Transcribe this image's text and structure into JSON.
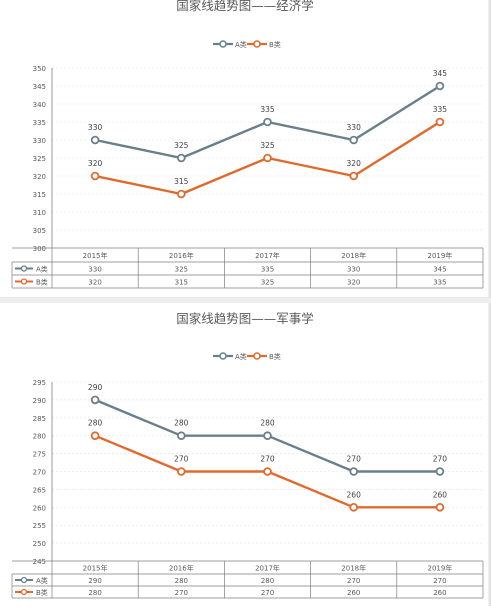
{
  "colors": {
    "series_a": "#6a7f8b",
    "series_b": "#e06a2e",
    "grid": "#e2e2e2",
    "axis": "#7f7f7f",
    "text": "#595959"
  },
  "chart_data": [
    {
      "type": "line",
      "title": "国家线趋势图——经济学",
      "categories": [
        "2015年",
        "2016年",
        "2017年",
        "2018年",
        "2019年"
      ],
      "series": [
        {
          "name": "A类",
          "values": [
            330,
            325,
            335,
            330,
            345
          ],
          "color": "#6a7f8b"
        },
        {
          "name": "B类",
          "values": [
            320,
            315,
            325,
            320,
            335
          ],
          "color": "#e06a2e"
        }
      ],
      "ylim": [
        300,
        350
      ],
      "ystep": 5,
      "grid": true,
      "legend": "top",
      "data_table": true
    },
    {
      "type": "line",
      "title": "国家线趋势图——军事学",
      "categories": [
        "2015年",
        "2016年",
        "2017年",
        "2018年",
        "2019年"
      ],
      "series": [
        {
          "name": "A类",
          "values": [
            290,
            280,
            280,
            270,
            270
          ],
          "color": "#6a7f8b"
        },
        {
          "name": "B类",
          "values": [
            280,
            270,
            270,
            260,
            260
          ],
          "color": "#e06a2e"
        }
      ],
      "ylim": [
        245,
        295
      ],
      "ystep": 5,
      "grid": true,
      "legend": "top",
      "data_table": true
    }
  ]
}
